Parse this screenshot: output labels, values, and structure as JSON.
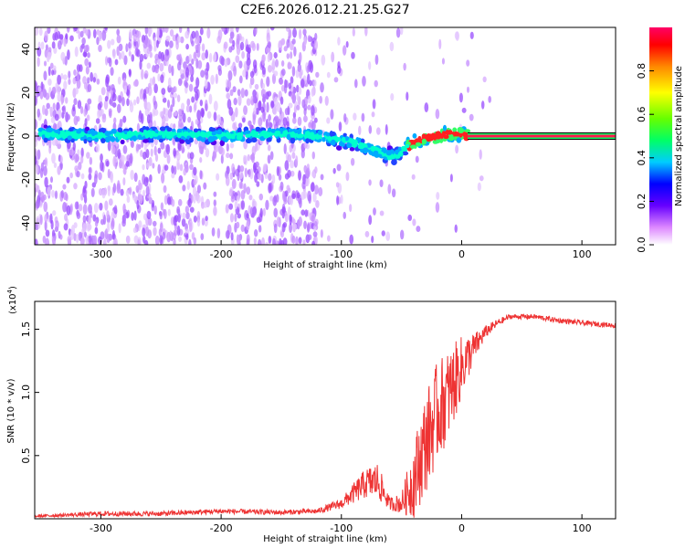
{
  "chart_data": [
    {
      "type": "heatmap",
      "title": "C2E6.2026.012.21.25.G27",
      "xlabel": "Height of straight line (km)",
      "ylabel": "Frequency (Hz)",
      "xlim": [
        -355,
        128
      ],
      "ylim": [
        -50,
        50
      ],
      "xticks": [
        -300,
        -200,
        -100,
        0,
        100
      ],
      "yticks": [
        -40,
        -20,
        0,
        20,
        40
      ],
      "ridge": {
        "x": [
          -350,
          -300,
          -250,
          -200,
          -150,
          -120,
          -100,
          -90,
          -80,
          -70,
          -60,
          -55,
          -50,
          -40,
          -30,
          -20,
          -10,
          0,
          5
        ],
        "freq": [
          1,
          0,
          1,
          0,
          1,
          0,
          -2,
          -3,
          -5,
          -7,
          -9,
          -9,
          -7,
          -3,
          -1,
          0,
          1,
          1,
          0
        ]
      },
      "tone": {
        "x_start": 5,
        "x_end": 128,
        "freq": 0
      },
      "colorbar": {
        "label": "Normalized spectral amplitude",
        "range": [
          0,
          1
        ],
        "ticks": [
          "0.0",
          "0.2",
          "0.4",
          "0.6",
          "0.8"
        ]
      }
    },
    {
      "type": "line",
      "xlabel": "Height of straight line (km)",
      "ylabel": "SNR (10 * v/v)",
      "multiplier": "(x10",
      "multiplier_exp": "4",
      "xlim": [
        -355,
        128
      ],
      "ylim": [
        0,
        1.72
      ],
      "xticks": [
        -300,
        -200,
        -100,
        0,
        100
      ],
      "yticks": [
        "0.5",
        "1.0",
        "1.5"
      ],
      "color": "#ee3333",
      "series": [
        {
          "name": "SNR",
          "x": [
            -355,
            -300,
            -250,
            -200,
            -150,
            -120,
            -100,
            -90,
            -80,
            -70,
            -60,
            -50,
            -40,
            -30,
            -20,
            -10,
            0,
            10,
            20,
            30,
            40,
            60,
            80,
            100,
            128
          ],
          "y": [
            0.02,
            0.04,
            0.04,
            0.06,
            0.05,
            0.06,
            0.12,
            0.2,
            0.28,
            0.3,
            0.12,
            0.12,
            0.3,
            0.6,
            0.85,
            1.0,
            1.2,
            1.35,
            1.48,
            1.55,
            1.6,
            1.6,
            1.57,
            1.55,
            1.53
          ],
          "spread": [
            0.01,
            0.02,
            0.02,
            0.02,
            0.02,
            0.02,
            0.04,
            0.08,
            0.12,
            0.15,
            0.05,
            0.08,
            0.3,
            0.4,
            0.4,
            0.35,
            0.25,
            0.12,
            0.05,
            0.03,
            0.02,
            0.02,
            0.02,
            0.02,
            0.02
          ]
        }
      ]
    }
  ]
}
